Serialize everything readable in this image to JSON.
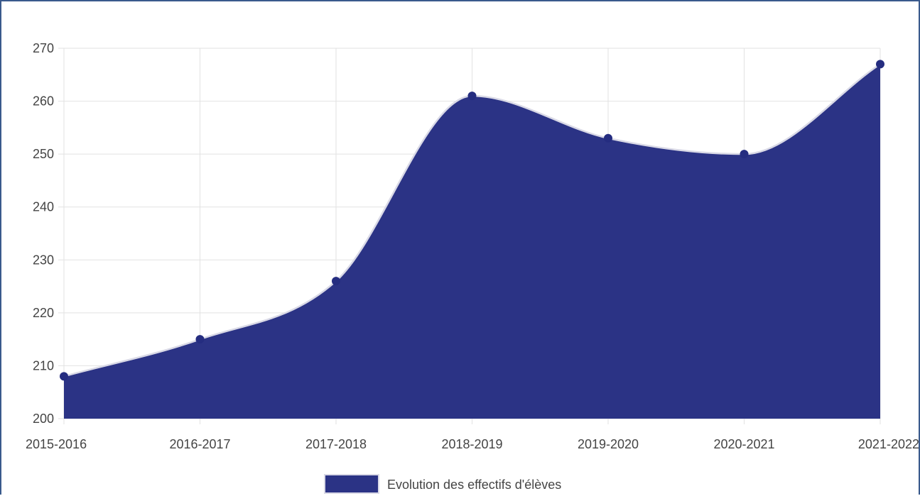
{
  "chart_data": {
    "type": "area",
    "categories": [
      "2015-2016",
      "2016-2017",
      "2017-2018",
      "2018-2019",
      "2019-2020",
      "2020-2021",
      "2021-2022"
    ],
    "series": [
      {
        "name": "Evolution des effectifs d'élèves",
        "values": [
          208,
          215,
          226,
          261,
          253,
          250,
          267
        ]
      }
    ],
    "ylim": [
      200,
      270
    ],
    "yticks": [
      "200",
      "210",
      "220",
      "230",
      "240",
      "250",
      "260",
      "270"
    ],
    "grid": true,
    "curve": "smooth",
    "legend_position": "bottom-center",
    "colors": {
      "fill": "#2b3385",
      "point": "#252d80",
      "stroke": "#d9d9e6",
      "grid": "#e2e2e2"
    }
  }
}
